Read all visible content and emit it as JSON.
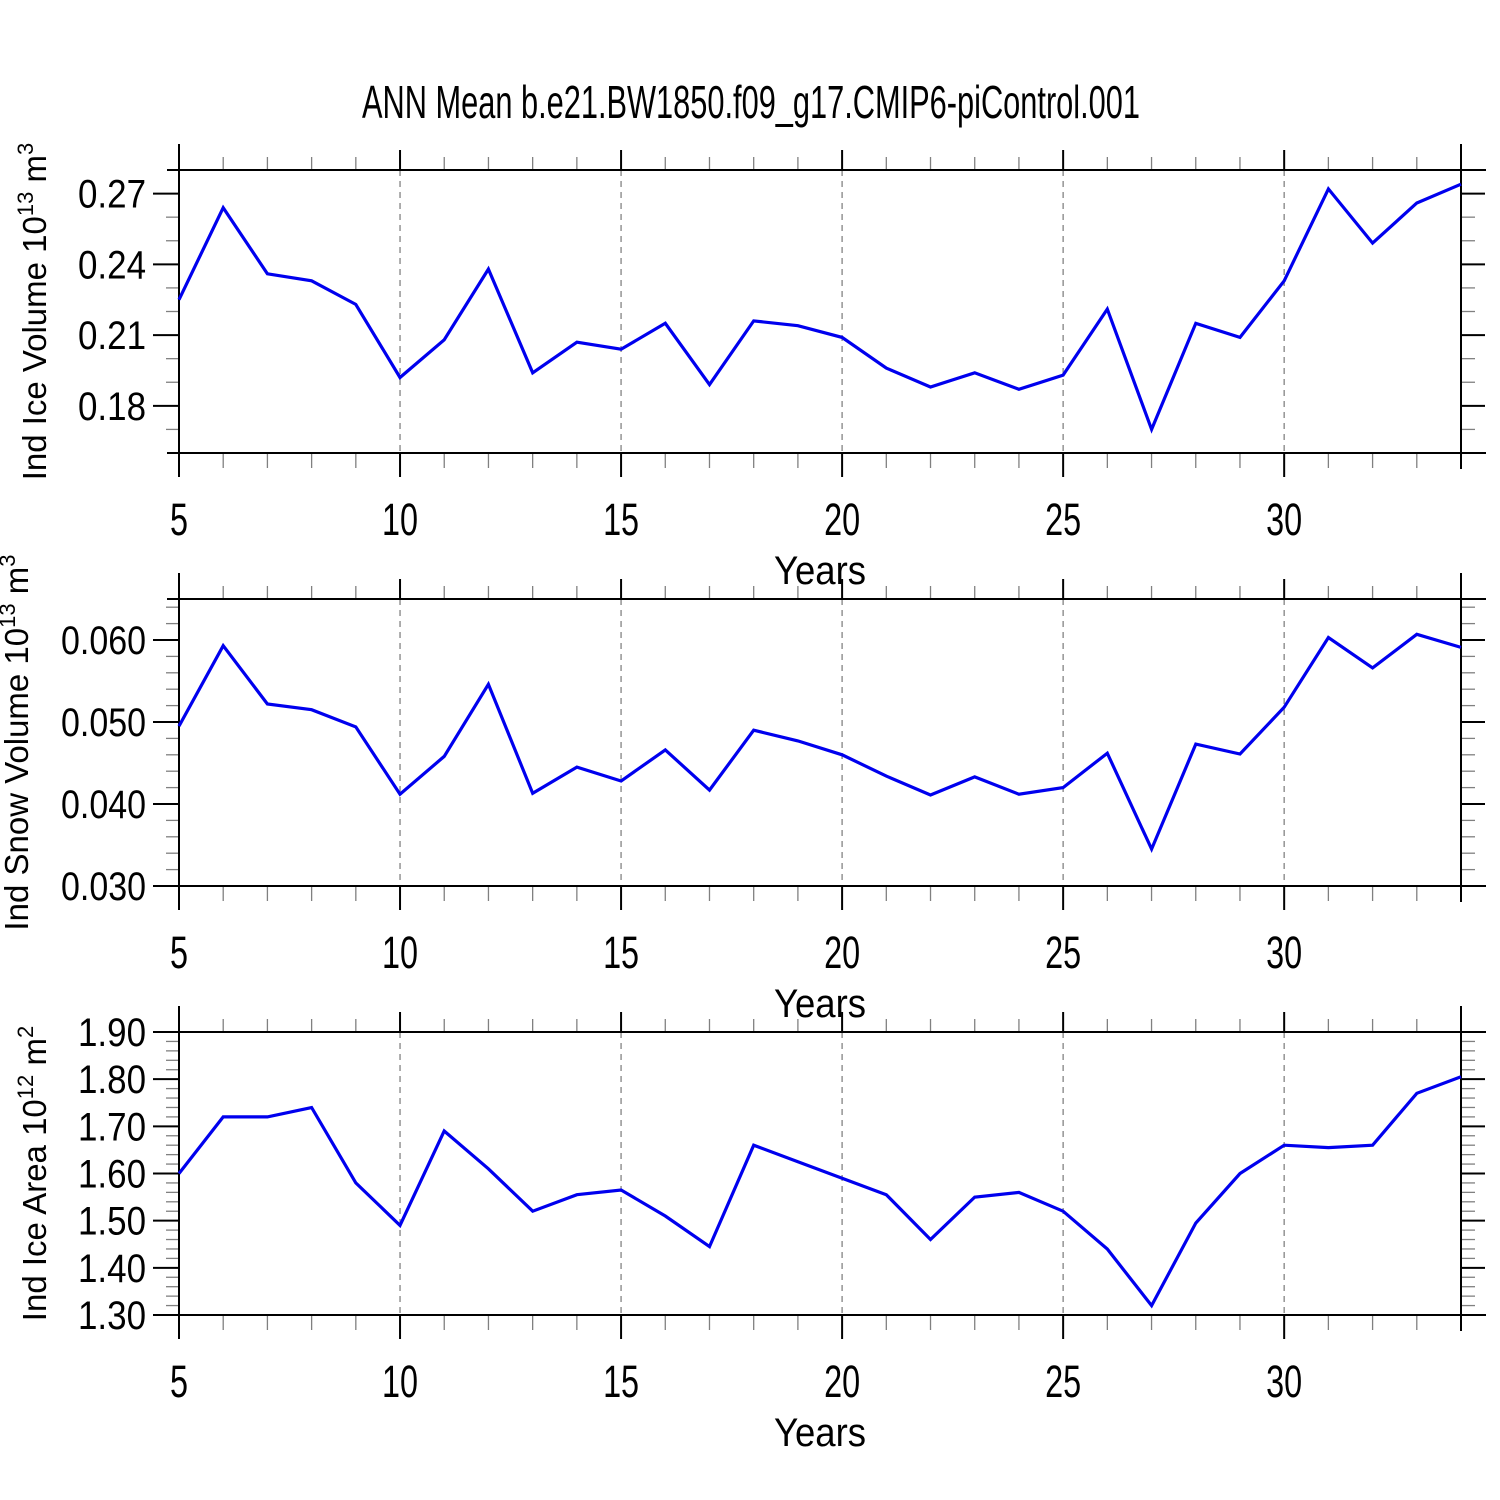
{
  "title": "ANN Mean b.e21.BW1850.f09_g17.CMIP6-piControl.001",
  "colors": {
    "line": "#0000ee",
    "axis": "#000000",
    "grid": "#8c8c8c",
    "major_tick": "#000000",
    "minor_tick": "#808080",
    "text": "#000000",
    "background": "#ffffff"
  },
  "chart_data": [
    {
      "type": "line",
      "name": "ice-volume",
      "ylabel": "Ind Ice Volume 10^{13} m^{3}",
      "xlabel": "Years",
      "x": [
        5,
        6,
        7,
        8,
        9,
        10,
        11,
        12,
        13,
        14,
        15,
        16,
        17,
        18,
        19,
        20,
        21,
        22,
        23,
        24,
        25,
        26,
        27,
        28,
        29,
        30,
        31,
        32,
        33,
        34
      ],
      "values": [
        0.225,
        0.264,
        0.236,
        0.233,
        0.223,
        0.192,
        0.208,
        0.238,
        0.194,
        0.207,
        0.204,
        0.215,
        0.189,
        0.216,
        0.214,
        0.209,
        0.196,
        0.188,
        0.194,
        0.187,
        0.193,
        0.221,
        0.17,
        0.215,
        0.209,
        0.233,
        0.272,
        0.249,
        0.266,
        0.274
      ],
      "xlim": [
        5,
        34
      ],
      "ylim": [
        0.16,
        0.28
      ],
      "yticks": [
        {
          "v": 0.27,
          "label": "0.27"
        },
        {
          "v": 0.24,
          "label": "0.24"
        },
        {
          "v": 0.21,
          "label": "0.21"
        },
        {
          "v": 0.18,
          "label": "0.18"
        }
      ],
      "yminor_step": 0.01,
      "xticks": [
        {
          "v": 5,
          "label": "5"
        },
        {
          "v": 10,
          "label": "10"
        },
        {
          "v": 15,
          "label": "15"
        },
        {
          "v": 20,
          "label": "20"
        },
        {
          "v": 25,
          "label": "25"
        },
        {
          "v": 30,
          "label": "30"
        }
      ],
      "xminor_step": 1,
      "x_gridlines": [
        10,
        15,
        20,
        25,
        30
      ],
      "grid": "dashed-vertical",
      "legend": null
    },
    {
      "type": "line",
      "name": "snow-volume",
      "ylabel": "Ind Snow Volume 10^{13} m^{3}",
      "xlabel": "Years",
      "x": [
        5,
        6,
        7,
        8,
        9,
        10,
        11,
        12,
        13,
        14,
        15,
        16,
        17,
        18,
        19,
        20,
        21,
        22,
        23,
        24,
        25,
        26,
        27,
        28,
        29,
        30,
        31,
        32,
        33,
        34
      ],
      "values": [
        0.0495,
        0.0593,
        0.0522,
        0.0515,
        0.0494,
        0.0412,
        0.0458,
        0.0546,
        0.0413,
        0.0445,
        0.0428,
        0.0466,
        0.0417,
        0.049,
        0.0477,
        0.046,
        0.0434,
        0.0411,
        0.0433,
        0.0412,
        0.042,
        0.0462,
        0.0345,
        0.0473,
        0.0461,
        0.0518,
        0.0603,
        0.0566,
        0.0607,
        0.0591
      ],
      "xlim": [
        5,
        34
      ],
      "ylim": [
        0.03,
        0.065
      ],
      "yticks": [
        {
          "v": 0.06,
          "label": "0.060"
        },
        {
          "v": 0.05,
          "label": "0.050"
        },
        {
          "v": 0.04,
          "label": "0.040"
        },
        {
          "v": 0.03,
          "label": "0.030"
        }
      ],
      "yminor_step": 0.002,
      "xticks": [
        {
          "v": 5,
          "label": "5"
        },
        {
          "v": 10,
          "label": "10"
        },
        {
          "v": 15,
          "label": "15"
        },
        {
          "v": 20,
          "label": "20"
        },
        {
          "v": 25,
          "label": "25"
        },
        {
          "v": 30,
          "label": "30"
        }
      ],
      "xminor_step": 1,
      "x_gridlines": [
        10,
        15,
        20,
        25,
        30
      ],
      "grid": "dashed-vertical",
      "legend": null
    },
    {
      "type": "line",
      "name": "ice-area",
      "ylabel": "Ind Ice Area 10^{12} m^{2}",
      "xlabel": "Years",
      "x": [
        5,
        6,
        7,
        8,
        9,
        10,
        11,
        12,
        13,
        14,
        15,
        16,
        17,
        18,
        19,
        20,
        21,
        22,
        23,
        24,
        25,
        26,
        27,
        28,
        29,
        30,
        31,
        32,
        33,
        34
      ],
      "values": [
        1.6,
        1.72,
        1.72,
        1.74,
        1.58,
        1.49,
        1.69,
        1.61,
        1.52,
        1.555,
        1.565,
        1.51,
        1.445,
        1.66,
        1.625,
        1.59,
        1.555,
        1.46,
        1.55,
        1.56,
        1.52,
        1.44,
        1.32,
        1.495,
        1.6,
        1.66,
        1.655,
        1.66,
        1.77,
        1.805
      ],
      "xlim": [
        5,
        34
      ],
      "ylim": [
        1.3,
        1.9
      ],
      "yticks": [
        {
          "v": 1.9,
          "label": "1.90"
        },
        {
          "v": 1.8,
          "label": "1.80"
        },
        {
          "v": 1.7,
          "label": "1.70"
        },
        {
          "v": 1.6,
          "label": "1.60"
        },
        {
          "v": 1.5,
          "label": "1.50"
        },
        {
          "v": 1.4,
          "label": "1.40"
        },
        {
          "v": 1.3,
          "label": "1.30"
        }
      ],
      "yminor_step": 0.02,
      "xticks": [
        {
          "v": 5,
          "label": "5"
        },
        {
          "v": 10,
          "label": "10"
        },
        {
          "v": 15,
          "label": "15"
        },
        {
          "v": 20,
          "label": "20"
        },
        {
          "v": 25,
          "label": "25"
        },
        {
          "v": 30,
          "label": "30"
        }
      ],
      "xminor_step": 1,
      "x_gridlines": [
        10,
        15,
        20,
        25,
        30
      ],
      "grid": "dashed-vertical",
      "legend": null
    }
  ]
}
